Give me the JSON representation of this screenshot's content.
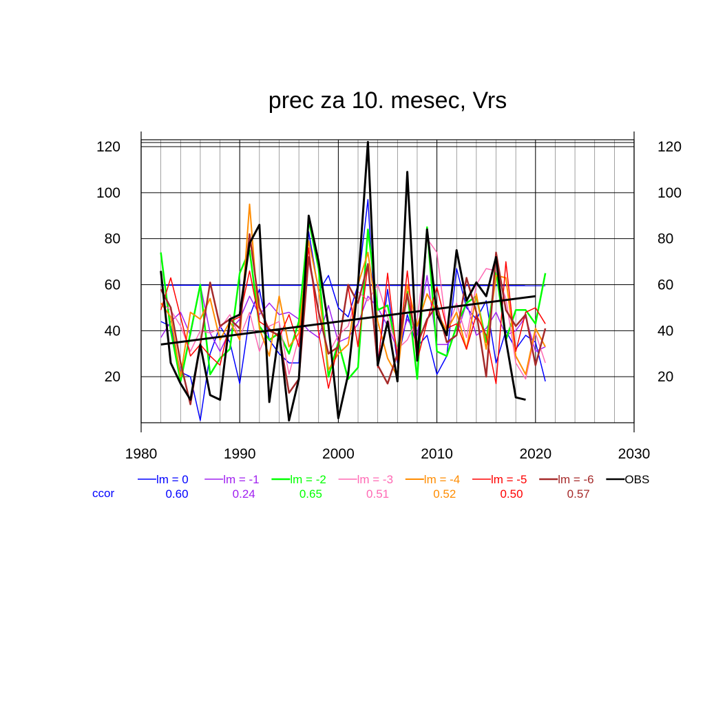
{
  "chart_data": {
    "type": "line",
    "title": "prec za 10. mesec, Vrs",
    "xlabel": "",
    "ylabel": "",
    "xlim": [
      1980,
      2030
    ],
    "ylim": [
      0,
      123
    ],
    "x_ticks": [
      1980,
      1990,
      2000,
      2010,
      2020,
      2030
    ],
    "y_ticks": [
      20,
      40,
      60,
      80,
      100,
      120
    ],
    "grid": true,
    "legend_position": "bottom",
    "ccor_label": "ccor",
    "x": [
      1982,
      1983,
      1984,
      1985,
      1986,
      1987,
      1988,
      1989,
      1990,
      1991,
      1992,
      1993,
      1994,
      1995,
      1996,
      1997,
      1998,
      1999,
      2000,
      2001,
      2002,
      2003,
      2004,
      2005,
      2006,
      2007,
      2008,
      2009,
      2010,
      2011,
      2012,
      2013,
      2014,
      2015,
      2016,
      2017,
      2018,
      2019,
      2020,
      2021
    ],
    "series": [
      {
        "name": "lm = 0",
        "color": "#0000ff",
        "ccor": "0.60",
        "line_width": 1.5,
        "values": [
          44,
          42,
          22,
          20,
          1,
          30,
          42,
          35,
          17,
          46,
          58,
          36,
          30,
          26,
          26,
          83,
          57,
          64,
          50,
          46,
          60,
          97,
          26,
          58,
          26,
          47,
          33,
          38,
          21,
          29,
          67,
          50,
          45,
          53,
          26,
          40,
          32,
          38,
          35,
          18
        ]
      },
      {
        "name": "lm = -1",
        "color": "#a020f0",
        "ccor": "0.24",
        "line_width": 1.5,
        "values": [
          37,
          44,
          48,
          38,
          60,
          39,
          31,
          40,
          45,
          55,
          47,
          52,
          47,
          48,
          45,
          40,
          37,
          51,
          35,
          37,
          43,
          55,
          50,
          42,
          32,
          45,
          38,
          64,
          34,
          34,
          38,
          52,
          38,
          41,
          48,
          38,
          40,
          46,
          31,
          33
        ]
      },
      {
        "name": "lm = -2",
        "color": "#00ff00",
        "ccor": "0.65",
        "line_width": 2.5,
        "values": [
          74,
          40,
          18,
          39,
          60,
          21,
          28,
          32,
          65,
          75,
          42,
          36,
          39,
          30,
          44,
          88,
          67,
          20,
          35,
          19,
          24,
          84,
          49,
          51,
          31,
          57,
          19,
          85,
          31,
          29,
          42,
          52,
          55,
          35,
          66,
          36,
          49,
          49,
          43,
          65
        ]
      },
      {
        "name": "lm = -3",
        "color": "#ff69b4",
        "ccor": "0.51",
        "line_width": 1.5,
        "values": [
          52,
          49,
          42,
          31,
          40,
          39,
          41,
          47,
          37,
          48,
          31,
          42,
          44,
          21,
          37,
          70,
          48,
          30,
          38,
          42,
          57,
          53,
          60,
          46,
          32,
          36,
          45,
          80,
          74,
          40,
          52,
          37,
          60,
          67,
          66,
          54,
          26,
          19,
          39,
          26
        ]
      },
      {
        "name": "lm = -4",
        "color": "#ff8c00",
        "ccor": "0.52",
        "line_width": 2.0,
        "values": [
          52,
          46,
          20,
          48,
          45,
          54,
          36,
          44,
          36,
          95,
          41,
          29,
          55,
          33,
          39,
          79,
          58,
          23,
          30,
          34,
          60,
          74,
          44,
          28,
          20,
          60,
          42,
          56,
          48,
          40,
          48,
          32,
          56,
          32,
          64,
          63,
          29,
          21,
          41,
          33
        ]
      },
      {
        "name": "lm = -5",
        "color": "#ff0000",
        "ccor": "0.50",
        "line_width": 1.5,
        "values": [
          49,
          63,
          46,
          29,
          34,
          29,
          25,
          44,
          46,
          66,
          44,
          41,
          37,
          47,
          33,
          76,
          39,
          15,
          34,
          59,
          33,
          69,
          24,
          65,
          27,
          66,
          27,
          44,
          59,
          41,
          43,
          32,
          47,
          38,
          17,
          70,
          31,
          48,
          50,
          43
        ]
      },
      {
        "name": "lm = -6",
        "color": "#a52a2a",
        "ccor": "0.57",
        "line_width": 2.5,
        "values": [
          58,
          50,
          26,
          8,
          34,
          61,
          42,
          45,
          41,
          82,
          50,
          40,
          38,
          13,
          19,
          72,
          48,
          30,
          33,
          60,
          52,
          69,
          25,
          17,
          30,
          56,
          34,
          45,
          51,
          35,
          38,
          63,
          48,
          20,
          74,
          49,
          42,
          47,
          25,
          41
        ]
      },
      {
        "name": "OBS",
        "color": "#000000",
        "ccor": "",
        "line_width": 3.0,
        "values": [
          66,
          26,
          17,
          10,
          34,
          12,
          10,
          45,
          47,
          78,
          86,
          9,
          40,
          1,
          19,
          90,
          70,
          42,
          2,
          21,
          60,
          122,
          25,
          44,
          18,
          109,
          27,
          84,
          47,
          38,
          75,
          53,
          61,
          55,
          72,
          36,
          11,
          10,
          null,
          null
        ]
      }
    ],
    "reference_line": {
      "color": "#0000ff",
      "y": [
        59.8,
        59.6
      ],
      "x": [
        1982,
        2021
      ]
    },
    "trend_line": {
      "color": "#000000",
      "x": [
        1982,
        2020
      ],
      "y": [
        34,
        55
      ]
    }
  }
}
